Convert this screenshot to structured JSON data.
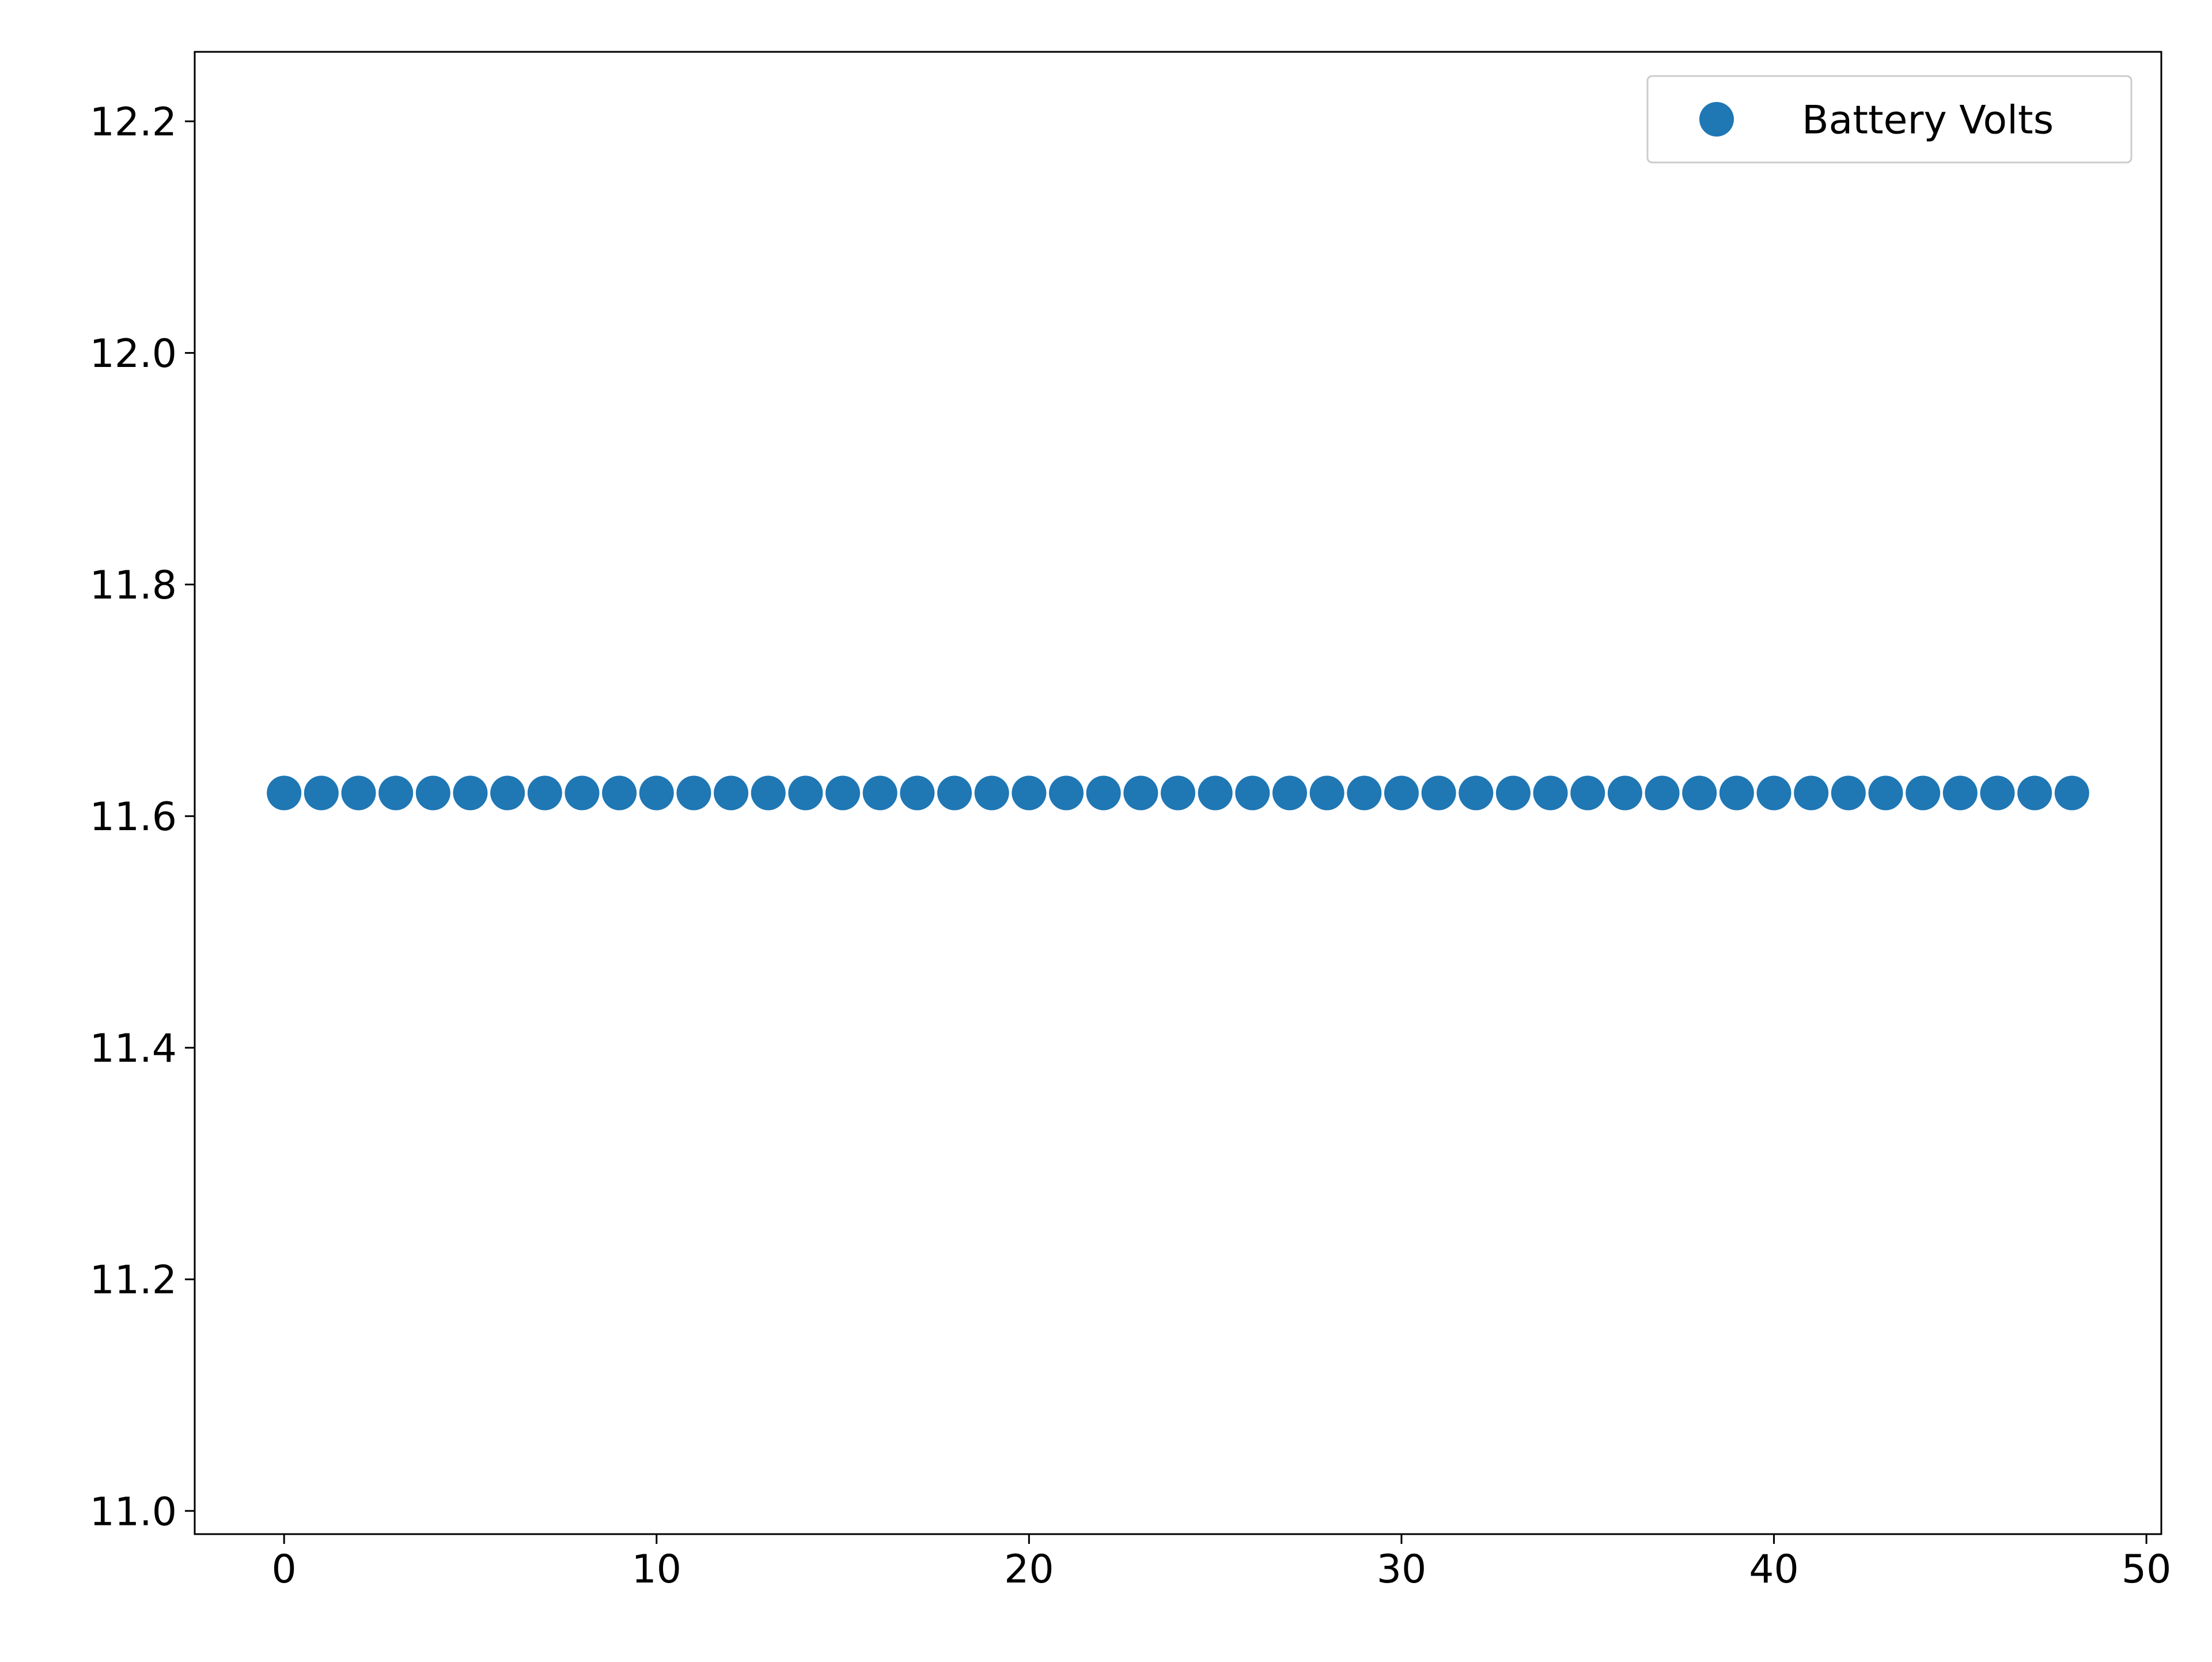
{
  "chart_data": {
    "type": "scatter",
    "title": "",
    "xlabel": "",
    "ylabel": "",
    "xlim": [
      -2.4,
      50.4
    ],
    "ylim": [
      10.98,
      12.26
    ],
    "xticks": [
      0,
      10,
      20,
      30,
      40,
      50
    ],
    "xtick_labels": [
      "0",
      "10",
      "20",
      "30",
      "40",
      "50"
    ],
    "yticks": [
      11.0,
      11.2,
      11.4,
      11.6,
      11.8,
      12.0,
      12.2
    ],
    "ytick_labels": [
      "11.0",
      "11.2",
      "11.4",
      "11.6",
      "11.8",
      "12.0",
      "12.2"
    ],
    "grid": false,
    "legend_position": "upper right",
    "series": [
      {
        "name": "Battery Volts",
        "color": "#1f77b4",
        "marker": "circle",
        "x": [
          0,
          1,
          2,
          3,
          4,
          5,
          6,
          7,
          8,
          9,
          10,
          11,
          12,
          13,
          14,
          15,
          16,
          17,
          18,
          19,
          20,
          21,
          22,
          23,
          24,
          25,
          26,
          27,
          28,
          29,
          30,
          31,
          32,
          33,
          34,
          35,
          36,
          37,
          38,
          39,
          40,
          41,
          42,
          43,
          44,
          45,
          46,
          47,
          48
        ],
        "y": [
          11.62,
          11.62,
          11.62,
          11.62,
          11.62,
          11.62,
          11.62,
          11.62,
          11.62,
          11.62,
          11.62,
          11.62,
          11.62,
          11.62,
          11.62,
          11.62,
          11.62,
          11.62,
          11.62,
          11.62,
          11.62,
          11.62,
          11.62,
          11.62,
          11.62,
          11.62,
          11.62,
          11.62,
          11.62,
          11.62,
          11.62,
          11.62,
          11.62,
          11.62,
          11.62,
          11.62,
          11.62,
          11.62,
          11.62,
          11.62,
          11.62,
          11.62,
          11.62,
          11.62,
          11.62,
          11.62,
          11.62,
          11.62,
          11.62
        ]
      }
    ]
  }
}
